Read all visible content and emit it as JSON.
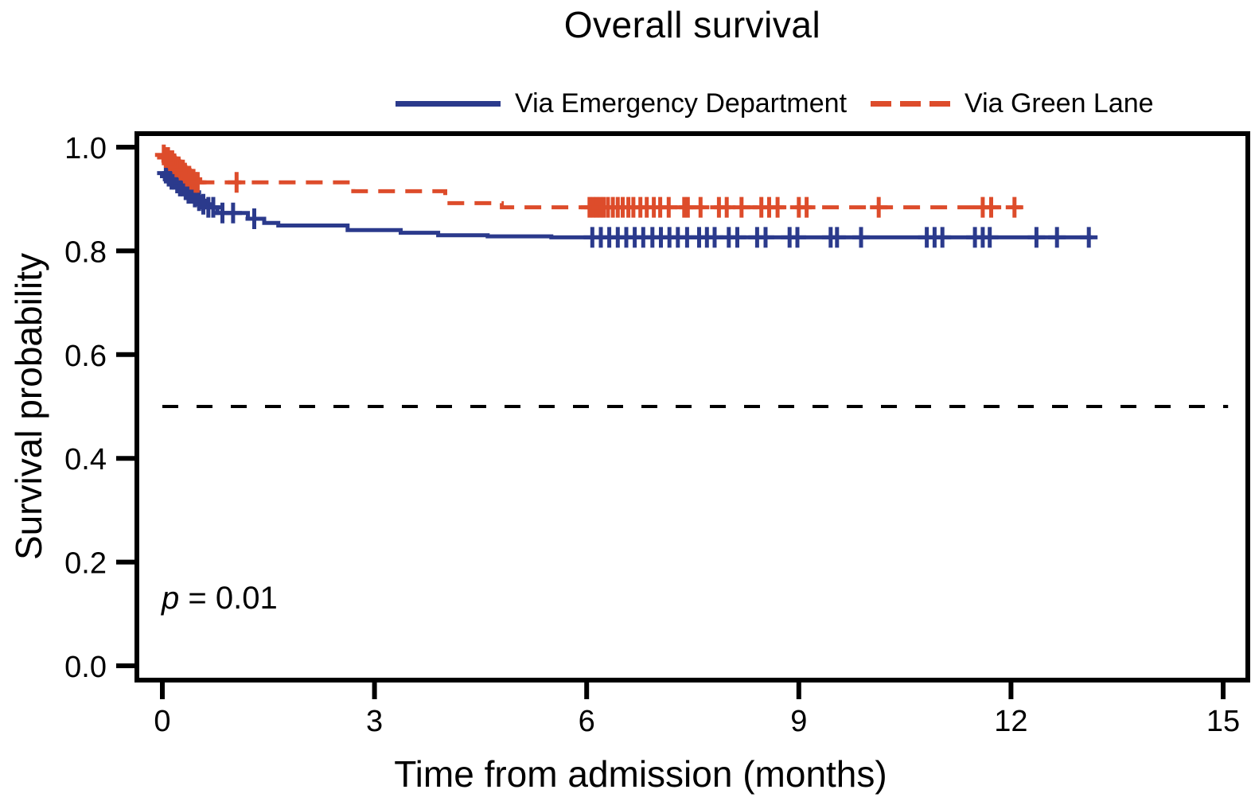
{
  "title": "Overall survival",
  "legend": {
    "items": [
      {
        "label": "Via Emergency Department",
        "color": "#2b3a8c",
        "style": "solid"
      },
      {
        "label": "Via Green Lane",
        "color": "#dd4c2b",
        "style": "dashed"
      }
    ]
  },
  "annotation": {
    "p_symbol": "p",
    "p_rest": " = 0.01"
  },
  "chart_data": {
    "type": "line",
    "subtype": "kaplan-meier-step",
    "title": "Overall survival",
    "xlabel": "Time from admission (months)",
    "ylabel": "Survival probability",
    "xlim": [
      0,
      15
    ],
    "ylim": [
      0,
      1
    ],
    "xticks": [
      0,
      3,
      6,
      9,
      12,
      15
    ],
    "xtick_labels": [
      "0",
      "3",
      "6",
      "9",
      "12",
      "15"
    ],
    "yticks": [
      0.0,
      0.2,
      0.4,
      0.6,
      0.8,
      1.0
    ],
    "ytick_labels": [
      "0.0",
      "0.2",
      "0.4",
      "0.6",
      "0.8",
      "1.0"
    ],
    "grid": false,
    "legend_position": "top",
    "p_value_text": "p = 0.01",
    "reference_line": {
      "y": 0.5,
      "style": "dashed",
      "color": "#000000"
    },
    "series": [
      {
        "name": "Via Emergency Department",
        "color": "#2b3a8c",
        "line_style": "solid",
        "solid_until": 13.15,
        "end_x": 13.15,
        "steps": [
          [
            0.0,
            0.95
          ],
          [
            0.06,
            0.944
          ],
          [
            0.12,
            0.938
          ],
          [
            0.18,
            0.931
          ],
          [
            0.24,
            0.925
          ],
          [
            0.3,
            0.918
          ],
          [
            0.36,
            0.911
          ],
          [
            0.42,
            0.904
          ],
          [
            0.48,
            0.897
          ],
          [
            0.55,
            0.89
          ],
          [
            0.62,
            0.884
          ],
          [
            0.78,
            0.873
          ],
          [
            1.21,
            0.862
          ],
          [
            1.44,
            0.854
          ],
          [
            1.64,
            0.849
          ],
          [
            2.62,
            0.84
          ],
          [
            3.37,
            0.835
          ],
          [
            3.9,
            0.83
          ],
          [
            4.6,
            0.828
          ],
          [
            5.5,
            0.826
          ]
        ],
        "censor_times": [
          0.05,
          0.09,
          0.13,
          0.17,
          0.21,
          0.25,
          0.29,
          0.33,
          0.37,
          0.41,
          0.46,
          0.52,
          0.58,
          0.65,
          0.72,
          0.85,
          1.0,
          1.3,
          6.08,
          6.2,
          6.32,
          6.44,
          6.56,
          6.68,
          6.8,
          6.93,
          7.05,
          7.17,
          7.29,
          7.42,
          7.59,
          7.7,
          7.81,
          8.01,
          8.13,
          8.41,
          8.53,
          8.87,
          8.98,
          9.45,
          9.54,
          9.88,
          10.81,
          10.92,
          11.03,
          11.49,
          11.6,
          11.7,
          12.36,
          12.65,
          13.1
        ]
      },
      {
        "name": "Via Green Lane",
        "color": "#dd4c2b",
        "line_style": "dashed",
        "solid_until": 0.5,
        "end_x": 12.15,
        "steps": [
          [
            0.0,
            0.985
          ],
          [
            0.05,
            0.98
          ],
          [
            0.1,
            0.974
          ],
          [
            0.15,
            0.968
          ],
          [
            0.2,
            0.962
          ],
          [
            0.25,
            0.956
          ],
          [
            0.3,
            0.95
          ],
          [
            0.35,
            0.944
          ],
          [
            0.4,
            0.938
          ],
          [
            0.46,
            0.932
          ],
          [
            2.7,
            0.915
          ],
          [
            4.0,
            0.892
          ],
          [
            4.8,
            0.884
          ]
        ],
        "censor_times": [
          0.02,
          0.05,
          0.08,
          0.11,
          0.14,
          0.17,
          0.2,
          0.23,
          0.26,
          0.29,
          0.32,
          0.35,
          0.38,
          0.41,
          0.44,
          0.47,
          0.5,
          1.05,
          6.04,
          6.09,
          6.14,
          6.19,
          6.24,
          6.3,
          6.37,
          6.44,
          6.51,
          6.59,
          6.66,
          6.76,
          6.85,
          6.95,
          7.04,
          7.16,
          7.38,
          7.43,
          7.61,
          7.87,
          7.98,
          8.19,
          8.47,
          8.58,
          8.7,
          9.0,
          9.11,
          10.13,
          11.6,
          11.72,
          12.05
        ]
      }
    ]
  }
}
